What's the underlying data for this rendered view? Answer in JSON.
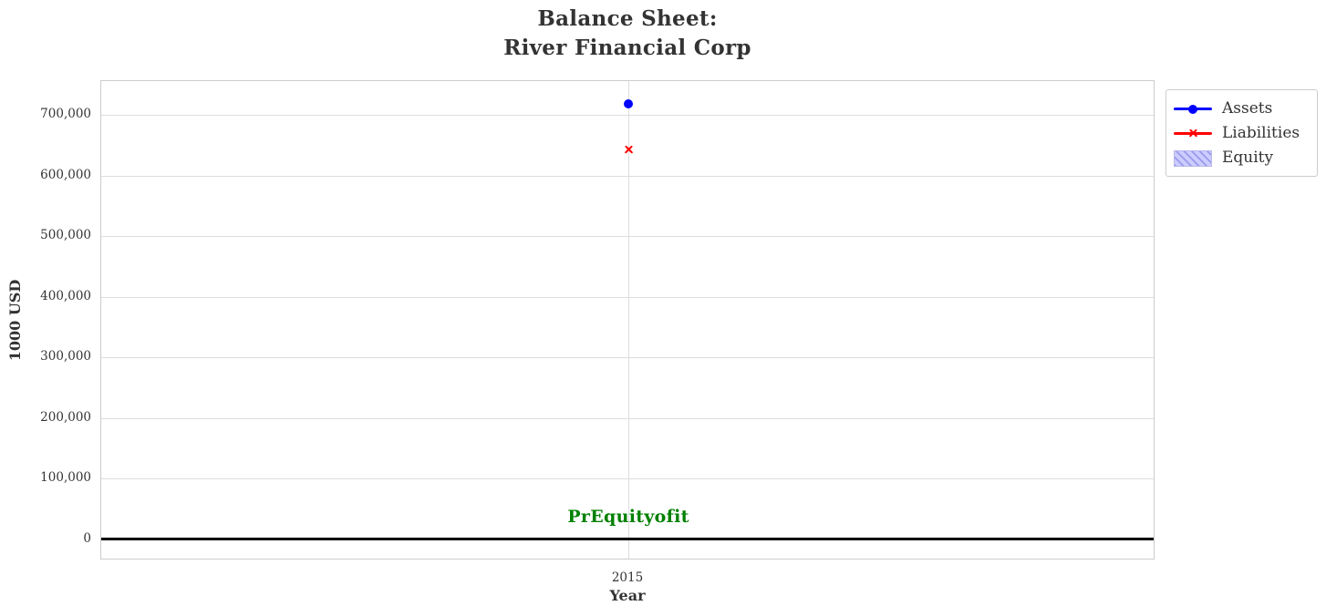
{
  "figure": {
    "background": "#ffffff",
    "plot_border_color": "#cccccc",
    "grid_color": "#dddddd",
    "text_color": "#333333"
  },
  "chart_data": {
    "type": "line",
    "title": "Balance Sheet:\nRiver Financial Corp",
    "xlabel": "Year",
    "ylabel": "1000 USD",
    "x_categories": [
      "2015"
    ],
    "series": [
      {
        "name": "Assets",
        "values": [
          718000
        ],
        "color": "#0000ff",
        "marker": "circle",
        "visible_in_plot": true
      },
      {
        "name": "Liabilities",
        "values": [
          643000
        ],
        "color": "#ff0000",
        "marker": "x",
        "visible_in_plot": true
      },
      {
        "name": "Equity",
        "values": [],
        "color": "#ccccff",
        "patch": true,
        "hatch": "///",
        "hatch_color": "#9999ee",
        "visible_in_plot": false
      }
    ],
    "ylim": [
      -35000,
      756000
    ],
    "yticks": {
      "values": [
        0,
        100000,
        200000,
        300000,
        400000,
        500000,
        600000,
        700000
      ],
      "labels": [
        "0",
        "100,000",
        "200,000",
        "300,000",
        "400,000",
        "500,000",
        "600,000",
        "700,000"
      ]
    },
    "grid": true,
    "zero_line_color": "#000000",
    "annotation": {
      "text": "PrEquityofit",
      "color": "#008000",
      "x": "2015",
      "y": 37000
    },
    "legend": {
      "position": "outside-top-right"
    }
  }
}
